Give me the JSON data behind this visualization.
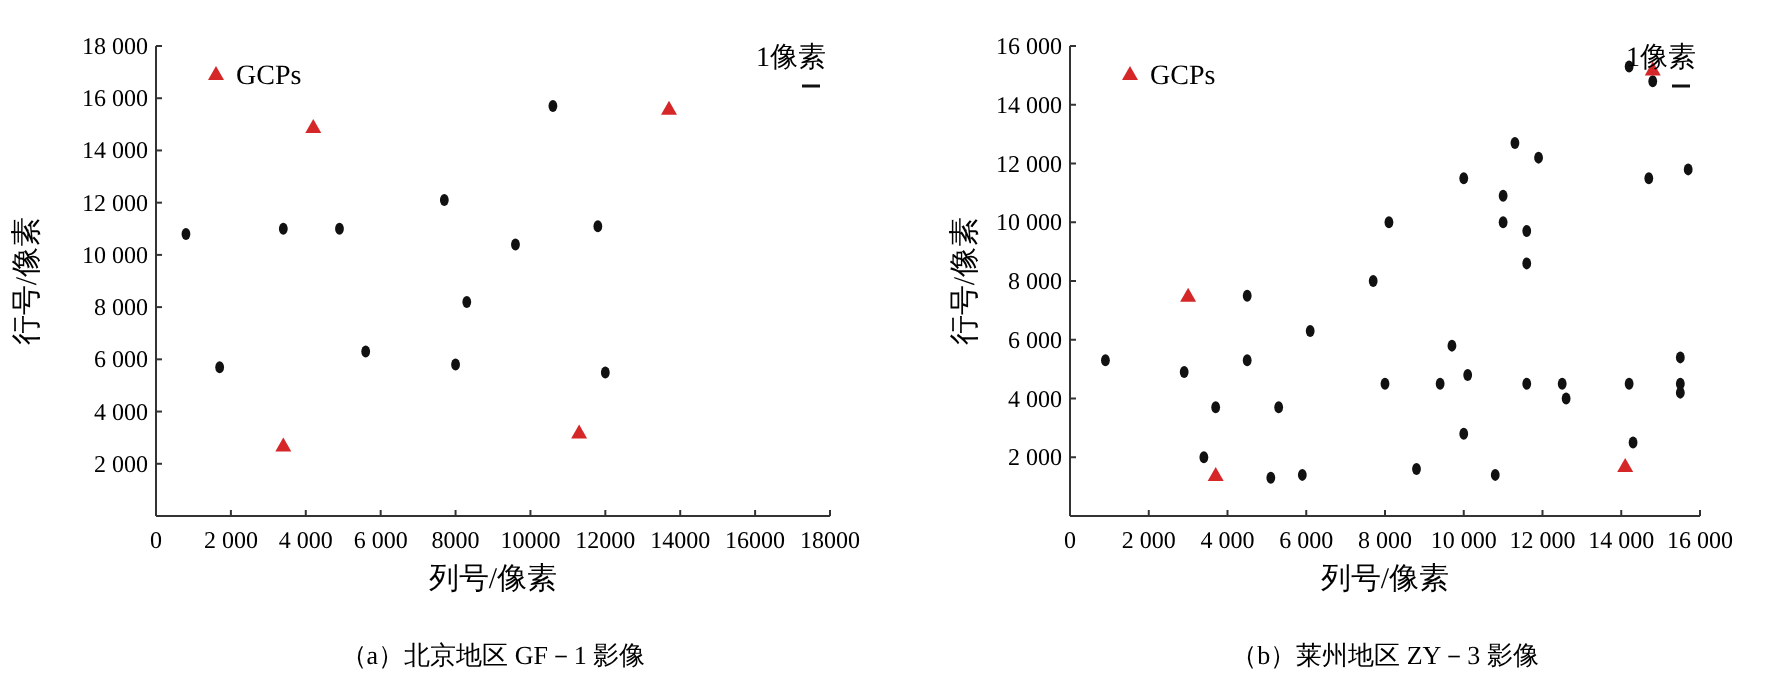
{
  "chart_data": [
    {
      "type": "scatter",
      "title": "（a）北京地区 GF－1 影像",
      "xlabel": "列号/像素",
      "ylabel": "行号/像素",
      "xlim": [
        0,
        18000
      ],
      "ylim": [
        0,
        18000
      ],
      "xticks": [
        {
          "value": 0,
          "label": "0"
        },
        {
          "value": 2000,
          "label": "2 000"
        },
        {
          "value": 4000,
          "label": "4 000"
        },
        {
          "value": 6000,
          "label": "6 000"
        },
        {
          "value": 8000,
          "label": "8000"
        },
        {
          "value": 10000,
          "label": "10000"
        },
        {
          "value": 12000,
          "label": "12000"
        },
        {
          "value": 14000,
          "label": "14000"
        },
        {
          "value": 16000,
          "label": "16000"
        },
        {
          "value": 18000,
          "label": "18000"
        }
      ],
      "yticks": [
        {
          "value": 0,
          "label": null
        },
        {
          "value": 2000,
          "label": "2 000"
        },
        {
          "value": 4000,
          "label": "4 000"
        },
        {
          "value": 6000,
          "label": "6 000"
        },
        {
          "value": 8000,
          "label": "8 000"
        },
        {
          "value": 10000,
          "label": "10 000"
        },
        {
          "value": 12000,
          "label": "12 000"
        },
        {
          "value": 14000,
          "label": "14 000"
        },
        {
          "value": 16000,
          "label": "16 000"
        },
        {
          "value": 18000,
          "label": "18 000"
        }
      ],
      "legend": "top left",
      "annotations": [
        "1像素"
      ],
      "series": [
        {
          "color": "#111111",
          "marker": "circle",
          "x": [
            800,
            3400,
            4900,
            1700,
            5600,
            7700,
            8300,
            9600,
            10600,
            8000,
            11800,
            12000
          ],
          "values": [
            10800,
            11000,
            11000,
            5700,
            6300,
            12100,
            8200,
            10400,
            15700,
            5800,
            11100,
            5500
          ]
        },
        {
          "name": "GCPs",
          "color": "#d62728",
          "marker": "triangle",
          "x": [
            4200,
            13700,
            3400,
            11300
          ],
          "values": [
            14900,
            15600,
            2700,
            3200
          ]
        }
      ]
    },
    {
      "type": "scatter",
      "title": "（b）莱州地区 ZY－3 影像",
      "xlabel": "列号/像素",
      "ylabel": "行号/像素",
      "xlim": [
        0,
        16000
      ],
      "ylim": [
        0,
        16000
      ],
      "xticks": [
        {
          "value": 0,
          "label": "0"
        },
        {
          "value": 2000,
          "label": "2 000"
        },
        {
          "value": 4000,
          "label": "4 000"
        },
        {
          "value": 6000,
          "label": "6 000"
        },
        {
          "value": 8000,
          "label": "8 000"
        },
        {
          "value": 10000,
          "label": "10 000"
        },
        {
          "value": 12000,
          "label": "12 000"
        },
        {
          "value": 14000,
          "label": "14 000"
        },
        {
          "value": 16000,
          "label": "16 000"
        }
      ],
      "yticks": [
        {
          "value": 0,
          "label": null
        },
        {
          "value": 2000,
          "label": "2 000"
        },
        {
          "value": 4000,
          "label": "4 000"
        },
        {
          "value": 6000,
          "label": "6 000"
        },
        {
          "value": 8000,
          "label": "8 000"
        },
        {
          "value": 10000,
          "label": "10 000"
        },
        {
          "value": 12000,
          "label": "12 000"
        },
        {
          "value": 14000,
          "label": "14 000"
        },
        {
          "value": 16000,
          "label": "16 000"
        }
      ],
      "legend": "top left",
      "annotations": [
        "1像素"
      ],
      "series": [
        {
          "color": "#111111",
          "marker": "circle",
          "x": [
            900,
            2900,
            3700,
            3400,
            4500,
            4500,
            5300,
            5100,
            5900,
            6100,
            7700,
            8100,
            8000,
            8800,
            9400,
            9700,
            10000,
            10100,
            10000,
            11000,
            11000,
            11300,
            11600,
            11600,
            11600,
            11900,
            10800,
            12500,
            12600,
            14200,
            14800,
            14200,
            14300,
            14700,
            15500,
            15500,
            15500,
            15700
          ],
          "values": [
            5300,
            4900,
            3700,
            2000,
            7500,
            5300,
            3700,
            1300,
            1400,
            6300,
            8000,
            10000,
            4500,
            1600,
            4500,
            5800,
            11500,
            4800,
            2800,
            10900,
            10000,
            12700,
            9700,
            8600,
            4500,
            12200,
            1400,
            4500,
            4000,
            15300,
            14800,
            4500,
            2500,
            11500,
            5400,
            4500,
            4200,
            11800
          ]
        },
        {
          "name": "GCPs",
          "color": "#d62728",
          "marker": "triangle",
          "x": [
            3000,
            3700,
            14100,
            14800
          ],
          "values": [
            7500,
            1400,
            1700,
            15200
          ]
        }
      ]
    }
  ]
}
